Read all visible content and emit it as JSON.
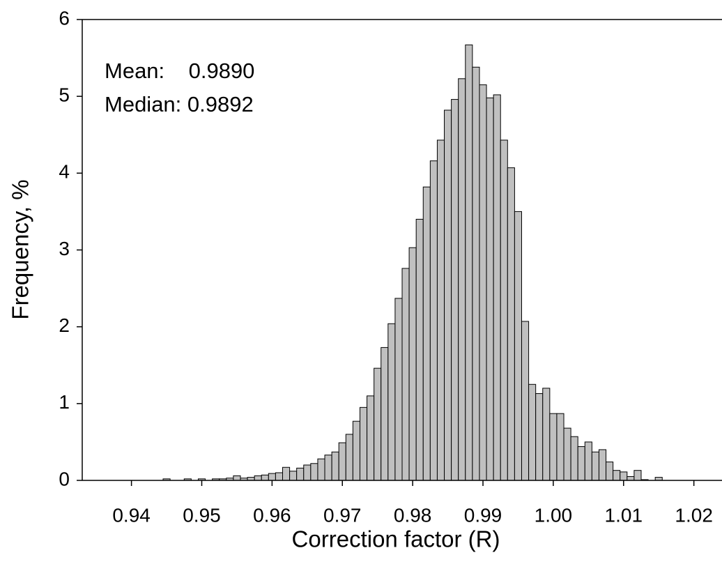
{
  "chart_data": {
    "type": "histogram",
    "x_label": "Correction factor (R)",
    "y_label": "Frequency, %",
    "annotations": [
      "Mean:    0.9890",
      "Median: 0.9892"
    ],
    "color": "#c0c0c0",
    "bins": [
      0.9335,
      0.9345,
      0.9355,
      0.9365,
      0.9375,
      0.9385,
      0.9395,
      0.9405,
      0.9415,
      0.9425,
      0.9435,
      0.9445,
      0.9455,
      0.9465,
      0.9475,
      0.9485,
      0.9495,
      0.9505,
      0.9515,
      0.9525,
      0.9535,
      0.9545,
      0.9555,
      0.9565,
      0.9575,
      0.9585,
      0.9595,
      0.9605,
      0.9615,
      0.9625,
      0.9635,
      0.9645,
      0.9655,
      0.9665,
      0.9675,
      0.9685,
      0.9695,
      0.9705,
      0.9715,
      0.9725,
      0.9735,
      0.9745,
      0.9755,
      0.9765,
      0.9775,
      0.9785,
      0.9795,
      0.9805,
      0.9815,
      0.9825,
      0.9835,
      0.9845,
      0.9855,
      0.9865,
      0.9875,
      0.9885,
      0.9895,
      0.9905,
      0.9915,
      0.9925,
      0.9935,
      0.9945,
      0.9955,
      0.9965,
      0.9975,
      0.9985,
      0.9995,
      1.0005,
      1.0015,
      1.0025,
      1.0035,
      1.0045,
      1.0055,
      1.0065,
      1.0075,
      1.0085,
      1.0095,
      1.0105,
      1.0115,
      1.0125,
      1.0135,
      1.0145,
      1.0155,
      1.0165,
      1.0175,
      1.0185,
      1.0195,
      1.0205,
      1.0215,
      1.0225,
      1.0235
    ],
    "values": [
      0,
      0,
      0,
      0,
      0,
      0,
      0,
      0,
      0,
      0,
      0,
      0.02,
      0,
      0,
      0.02,
      0,
      0.02,
      0,
      0.02,
      0.02,
      0.03,
      0.06,
      0.03,
      0.04,
      0.06,
      0.07,
      0.09,
      0.1,
      0.17,
      0.12,
      0.16,
      0.2,
      0.22,
      0.28,
      0.33,
      0.37,
      0.49,
      0.6,
      0.77,
      0.95,
      1.1,
      1.46,
      1.73,
      2.04,
      2.37,
      2.76,
      3.03,
      3.4,
      3.82,
      4.16,
      4.43,
      4.82,
      4.96,
      5.23,
      5.67,
      5.38,
      5.15,
      4.98,
      5.02,
      4.43,
      4.07,
      3.5,
      2.07,
      1.25,
      1.13,
      1.2,
      0.87,
      0.87,
      0.68,
      0.57,
      0.44,
      0.5,
      0.37,
      0.4,
      0.24,
      0.13,
      0.11,
      0.05,
      0.13,
      0.01,
      0,
      0.04,
      0,
      0,
      0,
      0,
      0,
      0,
      0,
      0
    ],
    "xlim": [
      0.933,
      1.024
    ],
    "ylim": [
      0,
      6
    ],
    "xticks": [
      0.94,
      0.95,
      0.96,
      0.97,
      0.98,
      0.99,
      {
        "value": 1.0,
        "label": "1.00"
      },
      1.01,
      1.02
    ],
    "yticks": [
      0,
      1,
      2,
      3,
      4,
      5,
      6
    ]
  }
}
